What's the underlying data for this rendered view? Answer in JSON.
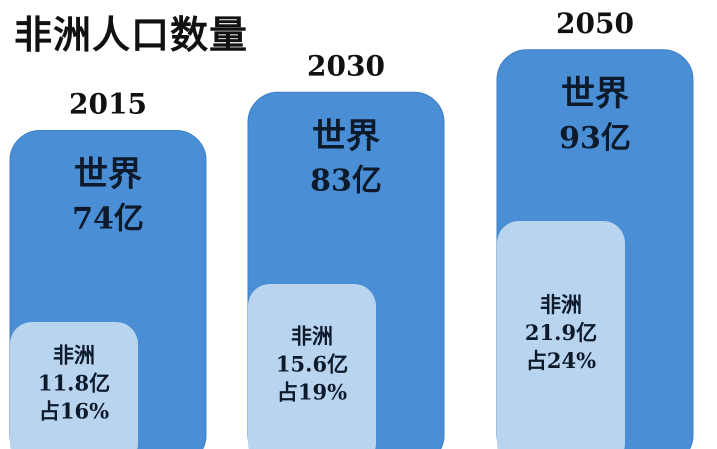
{
  "title": "非洲人口数量",
  "colors": {
    "world_box": "#4a8fd6",
    "world_box_stroke": "#3f7fc4",
    "africa_box": "#b9d4ef"
  },
  "chart_data": {
    "type": "bar",
    "title": "非洲人口数量",
    "unit": "亿",
    "categories": [
      "2015",
      "2030",
      "2050"
    ],
    "series": [
      {
        "name": "世界",
        "values": [
          74,
          83,
          93
        ],
        "labels": [
          "74亿",
          "83亿",
          "93亿"
        ]
      },
      {
        "name": "非洲",
        "values": [
          11.8,
          15.6,
          21.9
        ],
        "labels": [
          "11.8亿",
          "15.6亿",
          "21.9亿"
        ],
        "share_labels": [
          "占16%",
          "占19%",
          "占24%"
        ]
      }
    ]
  }
}
